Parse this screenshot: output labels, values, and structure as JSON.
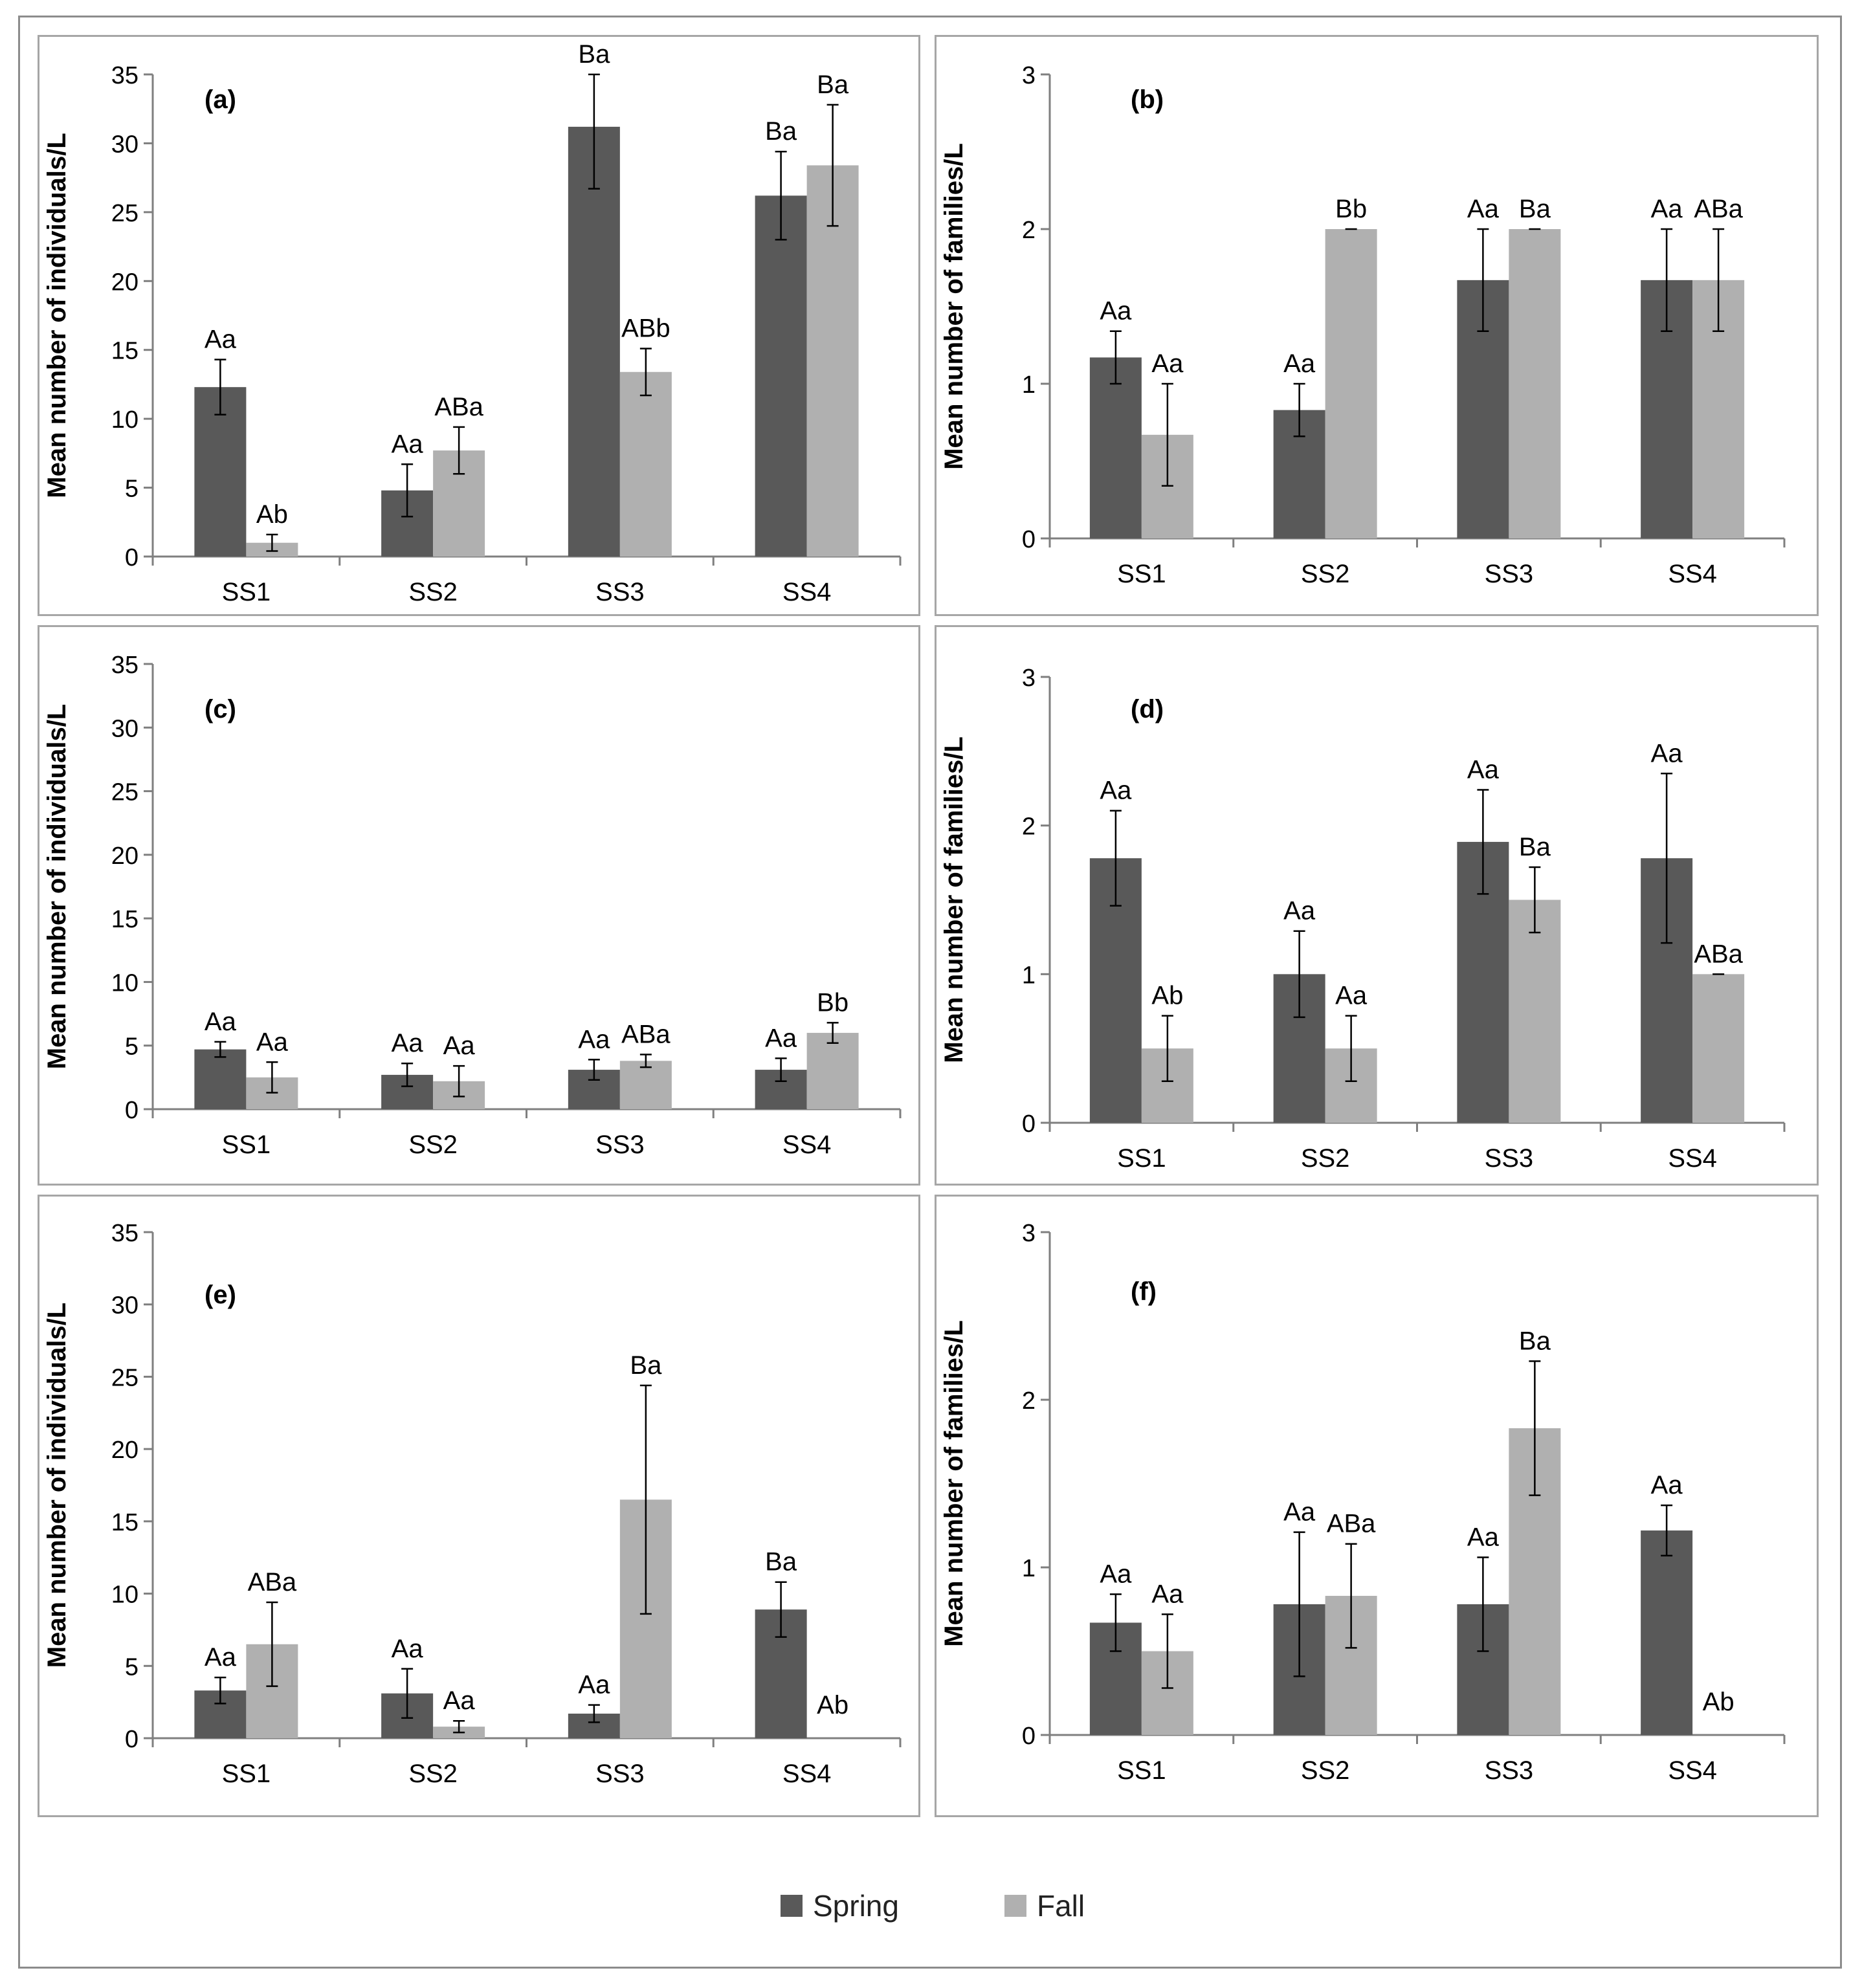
{
  "colors": {
    "spring": "#595959",
    "fall": "#b0b0b0",
    "axis": "#7f7f7f",
    "border": "#a6a6a6"
  },
  "legend": {
    "spring": "Spring",
    "fall": "Fall"
  },
  "chart_data": [
    {
      "type": "bar",
      "panel": "(a)",
      "ylabel": "Mean number of individuals/L",
      "ylim": [
        0,
        35
      ],
      "yticks": [
        0,
        5,
        10,
        15,
        20,
        25,
        30,
        35
      ],
      "categories": [
        "SS1",
        "SS2",
        "SS3",
        "SS4"
      ],
      "series": [
        {
          "name": "Spring",
          "values": [
            12.3,
            4.8,
            31.2,
            26.2
          ],
          "errors": [
            2.0,
            1.9,
            4.5,
            3.2
          ],
          "labels": [
            "Aa",
            "Aa",
            "Ba",
            "Ba"
          ]
        },
        {
          "name": "Fall",
          "values": [
            1.0,
            7.7,
            13.4,
            28.4
          ],
          "errors": [
            0.6,
            1.7,
            1.7,
            4.4
          ],
          "labels": [
            "Ab",
            "ABa",
            "ABb",
            "Ba"
          ]
        }
      ]
    },
    {
      "type": "bar",
      "panel": "(b)",
      "ylabel": "Mean number of families/L",
      "ylim": [
        0,
        3
      ],
      "yticks": [
        0,
        1,
        2,
        3
      ],
      "categories": [
        "SS1",
        "SS2",
        "SS3",
        "SS4"
      ],
      "series": [
        {
          "name": "Spring",
          "values": [
            1.17,
            0.83,
            1.67,
            1.67
          ],
          "errors": [
            0.17,
            0.17,
            0.33,
            0.33
          ],
          "labels": [
            "Aa",
            "Aa",
            "Aa",
            "Aa"
          ]
        },
        {
          "name": "Fall",
          "values": [
            0.67,
            2.0,
            2.0,
            1.67
          ],
          "errors": [
            0.33,
            0.0,
            0.0,
            0.33
          ],
          "labels": [
            "Aa",
            "Bb",
            "Ba",
            "ABa"
          ]
        }
      ]
    },
    {
      "type": "bar",
      "panel": "(c)",
      "ylabel": "Mean number of individuals/L",
      "ylim": [
        0,
        35
      ],
      "yticks": [
        0,
        5,
        10,
        15,
        20,
        25,
        30,
        35
      ],
      "categories": [
        "SS1",
        "SS2",
        "SS3",
        "SS4"
      ],
      "series": [
        {
          "name": "Spring",
          "values": [
            4.7,
            2.7,
            3.1,
            3.1
          ],
          "errors": [
            0.6,
            0.9,
            0.8,
            0.9
          ],
          "labels": [
            "Aa",
            "Aa",
            "Aa",
            "Aa"
          ]
        },
        {
          "name": "Fall",
          "values": [
            2.5,
            2.2,
            3.8,
            6.0
          ],
          "errors": [
            1.2,
            1.2,
            0.5,
            0.8
          ],
          "labels": [
            "Aa",
            "Aa",
            "ABa",
            "Bb"
          ]
        }
      ]
    },
    {
      "type": "bar",
      "panel": "(d)",
      "ylabel": "Mean number of families/L",
      "ylim": [
        0,
        3
      ],
      "yticks": [
        0,
        1,
        2,
        3
      ],
      "categories": [
        "SS1",
        "SS2",
        "SS3",
        "SS4"
      ],
      "series": [
        {
          "name": "Spring",
          "values": [
            1.78,
            1.0,
            1.89,
            1.78
          ],
          "errors": [
            0.32,
            0.29,
            0.35,
            0.57
          ],
          "labels": [
            "Aa",
            "Aa",
            "Aa",
            "Aa"
          ]
        },
        {
          "name": "Fall",
          "values": [
            0.5,
            0.5,
            1.5,
            1.0
          ],
          "errors": [
            0.22,
            0.22,
            0.22,
            0.0
          ],
          "labels": [
            "Ab",
            "Aa",
            "Ba",
            "ABa"
          ]
        }
      ]
    },
    {
      "type": "bar",
      "panel": "(e)",
      "ylabel": "Mean number of individuals/L",
      "ylim": [
        0,
        35
      ],
      "yticks": [
        0,
        5,
        10,
        15,
        20,
        25,
        30,
        35
      ],
      "categories": [
        "SS1",
        "SS2",
        "SS3",
        "SS4"
      ],
      "series": [
        {
          "name": "Spring",
          "values": [
            3.3,
            3.1,
            1.7,
            8.9
          ],
          "errors": [
            0.9,
            1.7,
            0.6,
            1.9
          ],
          "labels": [
            "Aa",
            "Aa",
            "Aa",
            "Ba"
          ]
        },
        {
          "name": "Fall",
          "values": [
            6.5,
            0.8,
            16.5,
            0.0
          ],
          "errors": [
            2.9,
            0.4,
            7.9,
            0.0
          ],
          "labels": [
            "ABa",
            "Aa",
            "Ba",
            "Ab"
          ]
        }
      ]
    },
    {
      "type": "bar",
      "panel": "(f)",
      "ylabel": "Mean number of families/L",
      "ylim": [
        0,
        3
      ],
      "yticks": [
        0,
        1,
        2,
        3
      ],
      "categories": [
        "SS1",
        "SS2",
        "SS3",
        "SS4"
      ],
      "series": [
        {
          "name": "Spring",
          "values": [
            0.67,
            0.78,
            0.78,
            1.22
          ],
          "errors": [
            0.17,
            0.43,
            0.28,
            0.15
          ],
          "labels": [
            "Aa",
            "Aa",
            "Aa",
            "Aa"
          ]
        },
        {
          "name": "Fall",
          "values": [
            0.5,
            0.83,
            1.83,
            0.0
          ],
          "errors": [
            0.22,
            0.31,
            0.4,
            0.0
          ],
          "labels": [
            "Aa",
            "ABa",
            "Ba",
            "Ab"
          ]
        }
      ]
    }
  ]
}
